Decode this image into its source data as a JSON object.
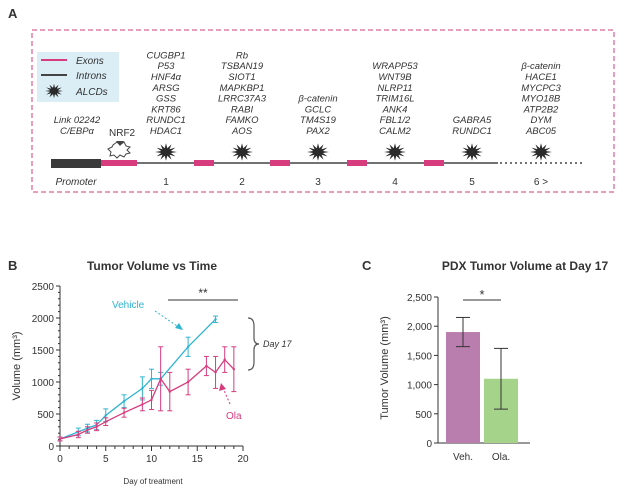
{
  "panel_a": {
    "letter": "A",
    "legend": {
      "exons": "Exons",
      "introns": "Introns",
      "alcds": "ALCDs"
    },
    "promoter_label": "Promoter",
    "nrf2_label": "NRF2",
    "colors": {
      "exon": "#d63c7e",
      "intron": "#444444",
      "promoter": "#3a3a3a",
      "border": "#d63c7e",
      "legend_bg": "#dbeef6"
    },
    "exon_labels": [
      "1",
      "2",
      "3",
      "4",
      "5",
      "6 >"
    ],
    "gene_groups": [
      {
        "lines": [
          "Link 02242",
          "C/EBPα"
        ]
      },
      {
        "lines": [
          "CUGBP1",
          "P53",
          "HNF4α",
          "ARSG",
          "GSS",
          "KRT86",
          "RUNDC1",
          "HDAC1"
        ]
      },
      {
        "lines": [
          "Rb",
          "TSBAN19",
          "SIOT1",
          "MAPKBP1",
          "LRRC37A3",
          "RABI",
          "FAMKO",
          "AOS"
        ]
      },
      {
        "lines": [
          "β-catenin",
          "GCLC",
          "TM4S19",
          "PAX2"
        ]
      },
      {
        "lines": [
          "WRAPP53",
          "WNT9B",
          "NLRP11",
          "TRIM16L",
          "ANK4",
          "FBL1/2",
          "CALM2"
        ]
      },
      {
        "lines": [
          "GABRA5",
          "RUNDC1"
        ]
      },
      {
        "lines": [
          "β-catenin",
          "HACE1",
          "MYCPC3",
          "MYO18B",
          "ATP2B2",
          "DYM",
          "ABC05"
        ]
      }
    ]
  },
  "chart_data": [
    {
      "type": "line",
      "panel": "B",
      "title": "Tumor Volume vs Time",
      "xlabel": "Day of treatment",
      "ylabel": "Volume (mm³)",
      "xlim": [
        0,
        20
      ],
      "ylim": [
        0,
        2500
      ],
      "xticks": [
        0,
        5,
        10,
        15,
        20
      ],
      "yticks": [
        0,
        500,
        1000,
        1500,
        2000,
        2500
      ],
      "series": [
        {
          "name": "Vehicle",
          "color": "#2fb4d2",
          "x": [
            0,
            2,
            3,
            4,
            5,
            7,
            9,
            10,
            11,
            14,
            17
          ],
          "y": [
            110,
            220,
            280,
            330,
            480,
            700,
            900,
            1050,
            1050,
            1550,
            1980
          ],
          "err": [
            30,
            60,
            60,
            70,
            100,
            100,
            180,
            150,
            100,
            150,
            50
          ]
        },
        {
          "name": "Ola",
          "color": "#d63c7e",
          "x": [
            0,
            2,
            3,
            4,
            5,
            7,
            9,
            10,
            11,
            12,
            14,
            16,
            17,
            18,
            19
          ],
          "y": [
            110,
            180,
            250,
            300,
            380,
            520,
            650,
            720,
            1050,
            850,
            1000,
            1250,
            1150,
            1350,
            1200
          ],
          "err": [
            30,
            50,
            50,
            60,
            60,
            70,
            100,
            150,
            500,
            300,
            200,
            150,
            250,
            200,
            350
          ]
        }
      ],
      "annotations": {
        "vehicle_label": "Vehicle",
        "ola_label": "Ola",
        "significance": "**",
        "day17_label": "Day 17"
      }
    },
    {
      "type": "bar",
      "panel": "C",
      "title": "PDX Tumor Volume at Day 17",
      "ylabel": "Tumor Volume (mm³)",
      "categories": [
        "Veh.",
        "Ola."
      ],
      "values": [
        1900,
        1100
      ],
      "errors": [
        250,
        520
      ],
      "colors": [
        "#b97ead",
        "#a6d38a"
      ],
      "ylim": [
        0,
        2500
      ],
      "yticks": [
        "0",
        "500",
        "1,000",
        "1,500",
        "2,000",
        "2,500"
      ],
      "significance": "*"
    }
  ]
}
